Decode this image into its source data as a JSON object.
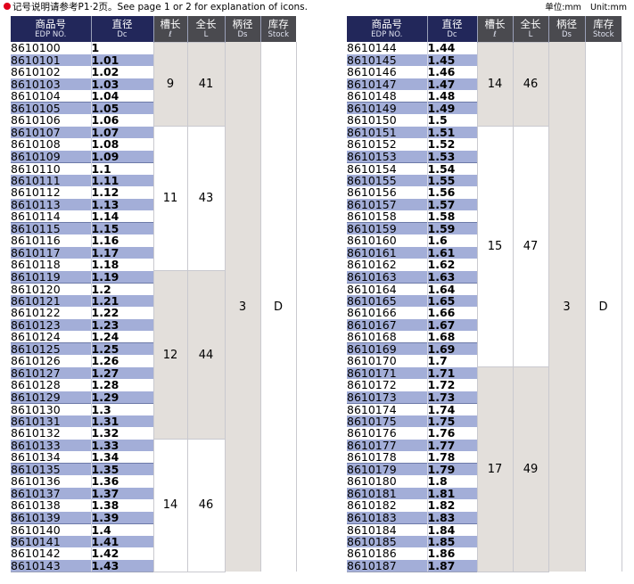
{
  "note": "记号说明请参考P1·2页。See page 1 or 2 for explanation of icons.",
  "units": [
    "单位:mm",
    "Unit:mm"
  ],
  "headers": [
    {
      "zh": "商品号",
      "en": "EDP NO."
    },
    {
      "zh": "直径",
      "en": "Dc"
    },
    {
      "zh": "槽长",
      "en": "ℓ"
    },
    {
      "zh": "全长",
      "en": "L"
    },
    {
      "zh": "柄径",
      "en": "Ds"
    },
    {
      "zh": "库存",
      "en": "Stock"
    }
  ],
  "tables": [
    {
      "shank": "3",
      "stock": "D",
      "groups": [
        {
          "flute": "9",
          "length": "41",
          "rows": [
            {
              "edp": "8610100",
              "dc": "1"
            },
            {
              "edp": "8610101",
              "dc": "1.01"
            },
            {
              "edp": "8610102",
              "dc": "1.02"
            },
            {
              "edp": "8610103",
              "dc": "1.03"
            },
            {
              "edp": "8610104",
              "dc": "1.04"
            },
            {
              "edp": "8610105",
              "dc": "1.05"
            },
            {
              "edp": "8610106",
              "dc": "1.06"
            }
          ]
        },
        {
          "flute": "11",
          "length": "43",
          "rows": [
            {
              "edp": "8610107",
              "dc": "1.07"
            },
            {
              "edp": "8610108",
              "dc": "1.08"
            },
            {
              "edp": "8610109",
              "dc": "1.09"
            },
            {
              "edp": "8610110",
              "dc": "1.1"
            },
            {
              "edp": "8610111",
              "dc": "1.11"
            },
            {
              "edp": "8610112",
              "dc": "1.12"
            },
            {
              "edp": "8610113",
              "dc": "1.13"
            },
            {
              "edp": "8610114",
              "dc": "1.14"
            },
            {
              "edp": "8610115",
              "dc": "1.15"
            },
            {
              "edp": "8610116",
              "dc": "1.16"
            },
            {
              "edp": "8610117",
              "dc": "1.17"
            },
            {
              "edp": "8610118",
              "dc": "1.18"
            }
          ]
        },
        {
          "flute": "12",
          "length": "44",
          "rows": [
            {
              "edp": "8610119",
              "dc": "1.19"
            },
            {
              "edp": "8610120",
              "dc": "1.2"
            },
            {
              "edp": "8610121",
              "dc": "1.21"
            },
            {
              "edp": "8610122",
              "dc": "1.22"
            },
            {
              "edp": "8610123",
              "dc": "1.23"
            },
            {
              "edp": "8610124",
              "dc": "1.24"
            },
            {
              "edp": "8610125",
              "dc": "1.25"
            },
            {
              "edp": "8610126",
              "dc": "1.26"
            },
            {
              "edp": "8610127",
              "dc": "1.27"
            },
            {
              "edp": "8610128",
              "dc": "1.28"
            },
            {
              "edp": "8610129",
              "dc": "1.29"
            },
            {
              "edp": "8610130",
              "dc": "1.3"
            },
            {
              "edp": "8610131",
              "dc": "1.31"
            },
            {
              "edp": "8610132",
              "dc": "1.32"
            }
          ]
        },
        {
          "flute": "14",
          "length": "46",
          "rows": [
            {
              "edp": "8610133",
              "dc": "1.33"
            },
            {
              "edp": "8610134",
              "dc": "1.34"
            },
            {
              "edp": "8610135",
              "dc": "1.35"
            },
            {
              "edp": "8610136",
              "dc": "1.36"
            },
            {
              "edp": "8610137",
              "dc": "1.37"
            },
            {
              "edp": "8610138",
              "dc": "1.38"
            },
            {
              "edp": "8610139",
              "dc": "1.39"
            },
            {
              "edp": "8610140",
              "dc": "1.4"
            },
            {
              "edp": "8610141",
              "dc": "1.41"
            },
            {
              "edp": "8610142",
              "dc": "1.42"
            },
            {
              "edp": "8610143",
              "dc": "1.43"
            }
          ]
        }
      ]
    },
    {
      "shank": "3",
      "stock": "D",
      "groups": [
        {
          "flute": "14",
          "length": "46",
          "rows": [
            {
              "edp": "8610144",
              "dc": "1.44"
            },
            {
              "edp": "8610145",
              "dc": "1.45"
            },
            {
              "edp": "8610146",
              "dc": "1.46"
            },
            {
              "edp": "8610147",
              "dc": "1.47"
            },
            {
              "edp": "8610148",
              "dc": "1.48"
            },
            {
              "edp": "8610149",
              "dc": "1.49"
            },
            {
              "edp": "8610150",
              "dc": "1.5"
            }
          ]
        },
        {
          "flute": "15",
          "length": "47",
          "rows": [
            {
              "edp": "8610151",
              "dc": "1.51"
            },
            {
              "edp": "8610152",
              "dc": "1.52"
            },
            {
              "edp": "8610153",
              "dc": "1.53"
            },
            {
              "edp": "8610154",
              "dc": "1.54"
            },
            {
              "edp": "8610155",
              "dc": "1.55"
            },
            {
              "edp": "8610156",
              "dc": "1.56"
            },
            {
              "edp": "8610157",
              "dc": "1.57"
            },
            {
              "edp": "8610158",
              "dc": "1.58"
            },
            {
              "edp": "8610159",
              "dc": "1.59"
            },
            {
              "edp": "8610160",
              "dc": "1.6"
            },
            {
              "edp": "8610161",
              "dc": "1.61"
            },
            {
              "edp": "8610162",
              "dc": "1.62"
            },
            {
              "edp": "8610163",
              "dc": "1.63"
            },
            {
              "edp": "8610164",
              "dc": "1.64"
            },
            {
              "edp": "8610165",
              "dc": "1.65"
            },
            {
              "edp": "8610166",
              "dc": "1.66"
            },
            {
              "edp": "8610167",
              "dc": "1.67"
            },
            {
              "edp": "8610168",
              "dc": "1.68"
            },
            {
              "edp": "8610169",
              "dc": "1.69"
            },
            {
              "edp": "8610170",
              "dc": "1.7"
            }
          ]
        },
        {
          "flute": "17",
          "length": "49",
          "rows": [
            {
              "edp": "8610171",
              "dc": "1.71"
            },
            {
              "edp": "8610172",
              "dc": "1.72"
            },
            {
              "edp": "8610173",
              "dc": "1.73"
            },
            {
              "edp": "8610174",
              "dc": "1.74"
            },
            {
              "edp": "8610175",
              "dc": "1.75"
            },
            {
              "edp": "8610176",
              "dc": "1.76"
            },
            {
              "edp": "8610177",
              "dc": "1.77"
            },
            {
              "edp": "8610178",
              "dc": "1.78"
            },
            {
              "edp": "8610179",
              "dc": "1.79"
            },
            {
              "edp": "8610180",
              "dc": "1.8"
            },
            {
              "edp": "8610181",
              "dc": "1.81"
            },
            {
              "edp": "8610182",
              "dc": "1.82"
            },
            {
              "edp": "8610183",
              "dc": "1.83"
            },
            {
              "edp": "8610184",
              "dc": "1.84"
            },
            {
              "edp": "8610185",
              "dc": "1.85"
            },
            {
              "edp": "8610186",
              "dc": "1.86"
            },
            {
              "edp": "8610187",
              "dc": "1.87"
            }
          ]
        }
      ]
    }
  ]
}
